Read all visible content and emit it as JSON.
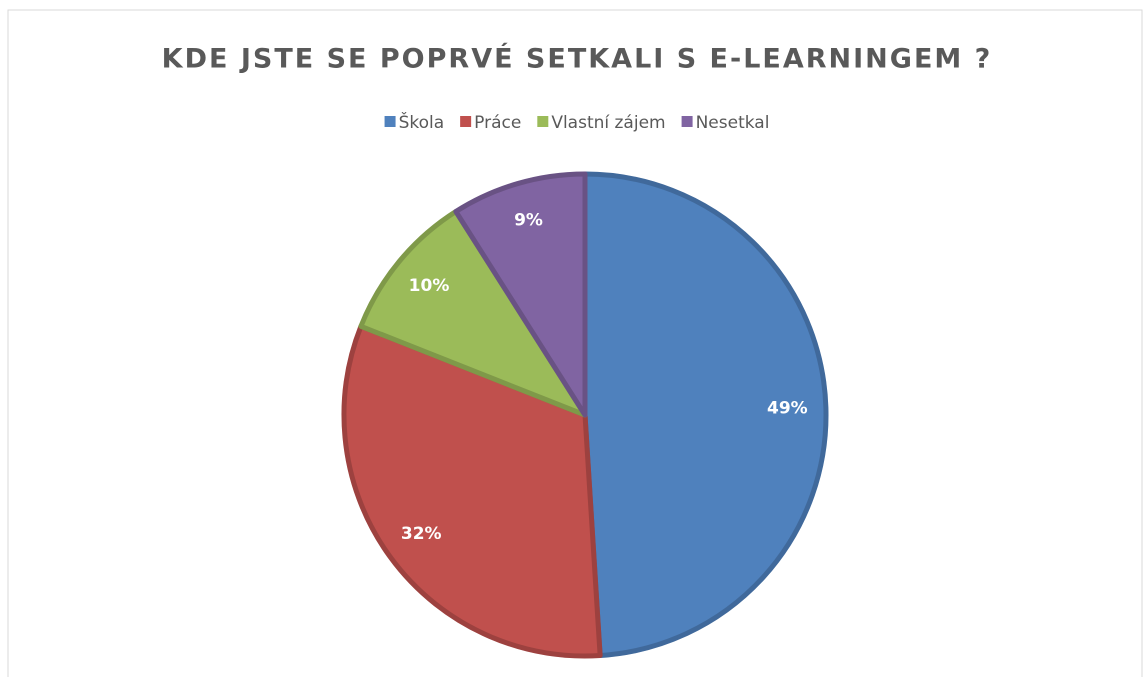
{
  "chart_data": {
    "type": "pie",
    "title": "KDE JSTE SE POPRVÉ SETKALI S E-LEARNINGEM ?",
    "categories": [
      "Škola",
      "Práce",
      "Vlastní zájem",
      "Nesetkal"
    ],
    "values": [
      49,
      32,
      10,
      9
    ],
    "value_labels": [
      "49%",
      "32%",
      "10%",
      "9%"
    ],
    "colors": [
      "#4f81bd",
      "#c0504d",
      "#9bbb59",
      "#8064a2"
    ],
    "legend": "top"
  }
}
